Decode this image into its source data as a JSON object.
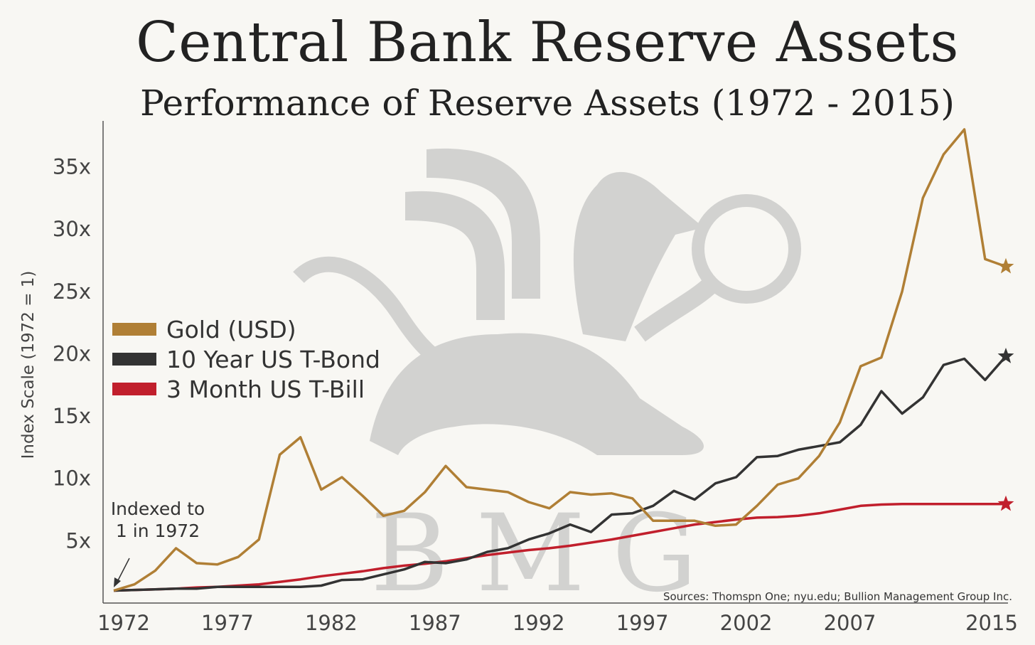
{
  "title": "Central Bank Reserve Assets",
  "subtitle": "Performance of Reserve Assets (1972 - 2015)",
  "annotation": [
    "Indexed to",
    "1 in 1972"
  ],
  "watermark": "BMG",
  "sources": "Sources: Thomspn One; nyu.edu; Bullion Management Group Inc.",
  "colors": {
    "gold": "#b07f35",
    "bond": "#333333",
    "bill": "#c11f2c",
    "axis": "#555555",
    "watermark": "#d2d2d0"
  },
  "chart_data": {
    "type": "line",
    "ylabel": "Index Scale (1972 = 1)",
    "xlabel": "",
    "xlim": [
      1972,
      2015
    ],
    "ylim": [
      0,
      38
    ],
    "x_ticks": [
      1972,
      1977,
      1982,
      1987,
      1992,
      1997,
      2002,
      2007,
      2015
    ],
    "y_ticks": [
      5,
      10,
      15,
      20,
      25,
      30,
      35
    ],
    "y_tick_labels": [
      "5x",
      "10x",
      "15x",
      "20x",
      "25x",
      "30x",
      "35x"
    ],
    "grid": false,
    "legend_position": "left",
    "x": [
      1972,
      1973,
      1974,
      1975,
      1976,
      1977,
      1978,
      1979,
      1980,
      1981,
      1982,
      1983,
      1984,
      1985,
      1986,
      1987,
      1988,
      1989,
      1990,
      1991,
      1992,
      1993,
      1994,
      1995,
      1996,
      1997,
      1998,
      1999,
      2000,
      2001,
      2002,
      2003,
      2004,
      2005,
      2006,
      2007,
      2008,
      2009,
      2010,
      2011,
      2012,
      2013,
      2014,
      2015
    ],
    "series": [
      {
        "name": "Gold (USD)",
        "color": "#b07f35",
        "values": [
          1.0,
          1.5,
          2.6,
          4.4,
          3.2,
          3.1,
          3.7,
          5.1,
          11.9,
          13.3,
          9.1,
          10.1,
          8.6,
          7.0,
          7.4,
          8.9,
          11.0,
          9.3,
          9.1,
          8.9,
          8.1,
          7.6,
          8.9,
          8.7,
          8.8,
          8.4,
          6.6,
          6.6,
          6.6,
          6.2,
          6.3,
          7.8,
          9.5,
          10.0,
          11.8,
          14.5,
          19.0,
          19.7,
          25.0,
          32.5,
          36.0,
          38.0,
          27.6,
          27.0
        ]
      },
      {
        "name": "10 Year US T-Bond",
        "color": "#333333",
        "values": [
          1.0,
          1.05,
          1.1,
          1.15,
          1.15,
          1.3,
          1.3,
          1.3,
          1.3,
          1.3,
          1.4,
          1.85,
          1.9,
          2.3,
          2.7,
          3.3,
          3.2,
          3.5,
          4.1,
          4.4,
          5.1,
          5.6,
          6.3,
          5.7,
          7.1,
          7.2,
          7.8,
          9.0,
          8.3,
          9.6,
          10.1,
          11.7,
          11.8,
          12.3,
          12.6,
          12.9,
          14.3,
          17.0,
          15.2,
          16.5,
          19.1,
          19.6,
          17.9,
          19.8
        ]
      },
      {
        "name": "3 Month US T-Bill",
        "color": "#c11f2c",
        "values": [
          1.0,
          1.05,
          1.1,
          1.15,
          1.25,
          1.3,
          1.4,
          1.5,
          1.7,
          1.9,
          2.15,
          2.35,
          2.55,
          2.8,
          3.0,
          3.15,
          3.35,
          3.6,
          3.85,
          4.05,
          4.25,
          4.4,
          4.6,
          4.85,
          5.1,
          5.4,
          5.7,
          6.0,
          6.3,
          6.5,
          6.7,
          6.85,
          6.9,
          7.0,
          7.2,
          7.5,
          7.8,
          7.9,
          7.95,
          7.95,
          7.95,
          7.95,
          7.95,
          7.95
        ]
      }
    ]
  }
}
